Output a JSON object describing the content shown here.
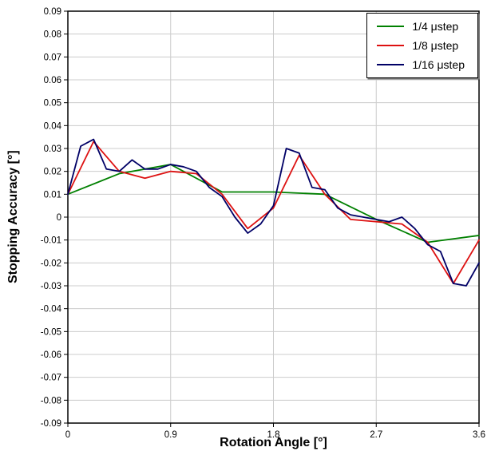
{
  "chart_data": {
    "type": "line",
    "title": "",
    "xlabel": "Rotation Angle [°]",
    "ylabel": "Stopping Accuracy [°]",
    "xlim": [
      0,
      3.6
    ],
    "ylim": [
      -0.09,
      0.09
    ],
    "grid": true,
    "grid_color": "#cccccc",
    "legend_position": "top-right",
    "x_ticks": [
      0,
      0.9,
      1.8,
      2.7,
      3.6
    ],
    "x_tick_labels": [
      "0",
      "0.9",
      "1.8",
      "2.7",
      "3.6"
    ],
    "y_ticks": [
      0.09,
      0.08,
      0.07,
      0.06,
      0.05,
      0.04,
      0.03,
      0.02,
      0.01,
      0,
      -0.01,
      -0.02,
      -0.03,
      -0.04,
      -0.05,
      -0.06,
      -0.07,
      -0.08,
      -0.09
    ],
    "y_tick_labels": [
      "0.09",
      "0.08",
      "0.07",
      "0.06",
      "0.05",
      "0.04",
      "0.03",
      "0.02",
      "0.01",
      "0",
      "-0.01",
      "-0.02",
      "-0.03",
      "-0.04",
      "-0.05",
      "-0.06",
      "-0.07",
      "-0.08",
      "-0.09"
    ],
    "series": [
      {
        "name": "1/4 μstep",
        "color": "#008000",
        "x": [
          0,
          0.45,
          0.9,
          1.35,
          1.8,
          2.25,
          2.7,
          3.15,
          3.6
        ],
        "y": [
          0.01,
          0.019,
          0.023,
          0.011,
          0.011,
          0.01,
          -0.001,
          -0.011,
          -0.008
        ]
      },
      {
        "name": "1/8 μstep",
        "color": "#dd1111",
        "x": [
          0,
          0.225,
          0.45,
          0.675,
          0.9,
          1.125,
          1.35,
          1.575,
          1.8,
          2.025,
          2.25,
          2.475,
          2.7,
          2.925,
          3.15,
          3.375,
          3.6
        ],
        "y": [
          0.01,
          0.033,
          0.02,
          0.017,
          0.02,
          0.019,
          0.01,
          -0.005,
          0.004,
          0.027,
          0.01,
          -0.001,
          -0.002,
          -0.003,
          -0.011,
          -0.029,
          -0.01
        ]
      },
      {
        "name": "1/16 μstep",
        "color": "#000066",
        "x": [
          0,
          0.1125,
          0.225,
          0.3375,
          0.45,
          0.5625,
          0.675,
          0.7875,
          0.9,
          1.0125,
          1.125,
          1.2375,
          1.35,
          1.4625,
          1.575,
          1.6875,
          1.8,
          1.9125,
          2.025,
          2.1375,
          2.25,
          2.3625,
          2.475,
          2.5875,
          2.7,
          2.8125,
          2.925,
          3.0375,
          3.15,
          3.2625,
          3.375,
          3.4875,
          3.6
        ],
        "y": [
          0.01,
          0.031,
          0.034,
          0.021,
          0.02,
          0.025,
          0.021,
          0.021,
          0.023,
          0.022,
          0.02,
          0.013,
          0.009,
          0.0,
          -0.007,
          -0.003,
          0.005,
          0.03,
          0.028,
          0.013,
          0.012,
          0.004,
          0.001,
          0.0,
          -0.001,
          -0.002,
          0.0,
          -0.005,
          -0.012,
          -0.015,
          -0.029,
          -0.03,
          -0.02
        ]
      }
    ]
  }
}
